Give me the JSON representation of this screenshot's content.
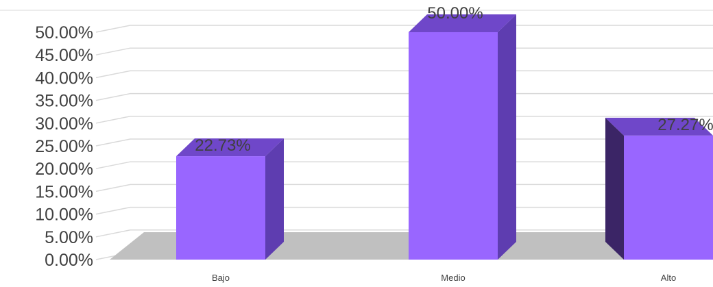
{
  "chart_data": {
    "type": "bar",
    "style": "3d-column",
    "categories": [
      "Bajo",
      "Medio",
      "Alto"
    ],
    "values": [
      22.73,
      50.0,
      27.27
    ],
    "data_labels": [
      "22.73%",
      "50.00%",
      "27.27%"
    ],
    "ylim": [
      0,
      50
    ],
    "yticks": [
      "0.00%",
      "5.00%",
      "10.00%",
      "15.00%",
      "20.00%",
      "25.00%",
      "30.00%",
      "35.00%",
      "40.00%",
      "45.00%",
      "50.00%"
    ],
    "grid": true,
    "legend": "none",
    "colors": {
      "bar_front": "#9966ff",
      "bar_top": "#6f47c9",
      "bar_side": "#5e3db0",
      "bar_side_dark": "#3b2566",
      "floor": "#c0c0c0",
      "grid": "#d9d9d9"
    }
  }
}
